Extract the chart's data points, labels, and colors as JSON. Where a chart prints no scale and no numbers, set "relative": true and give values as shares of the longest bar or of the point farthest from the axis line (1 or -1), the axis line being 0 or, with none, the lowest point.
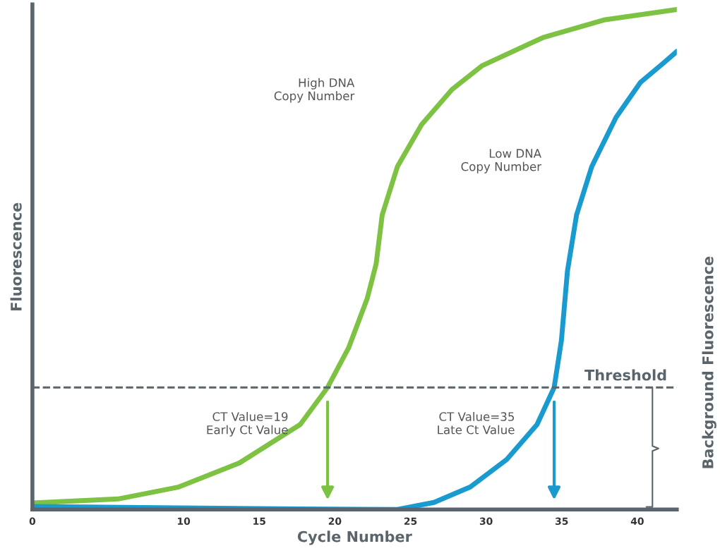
{
  "chart_data": {
    "type": "line",
    "xlabel": "Cycle Number",
    "ylabel": "Fluorescence",
    "relative": true,
    "xlim": [
      0,
      42.61
    ],
    "xticks": [
      0,
      10,
      15,
      20,
      25,
      30,
      35,
      40
    ],
    "series": [
      {
        "color": "#7dc242",
        "x": [
          0,
          5.66,
          9.68,
          13.69,
          17.71,
          19.52,
          20.92,
          22.13,
          22.73,
          23.13,
          24.14,
          25.74,
          27.75,
          29.76,
          33.78,
          37.79,
          42.61
        ],
        "values": [
          0.013,
          0.021,
          0.045,
          0.093,
          0.17,
          0.244,
          0.324,
          0.421,
          0.491,
          0.589,
          0.686,
          0.77,
          0.84,
          0.888,
          0.944,
          0.979,
          1
        ]
      },
      {
        "color": "#1a9bcf",
        "x": [
          0,
          9.68,
          17.71,
          24.14,
          26.55,
          28.96,
          31.37,
          33.37,
          34.5,
          34.98,
          35.38,
          35.98,
          36.99,
          38.59,
          40.2,
          41.81,
          42.61
        ],
        "values": [
          0.006,
          0.003,
          0.001,
          0,
          0.014,
          0.045,
          0.1,
          0.17,
          0.244,
          0.338,
          0.477,
          0.589,
          0.686,
          0.784,
          0.854,
          0.895,
          0.916
        ]
      }
    ],
    "ref_lines": [
      {
        "axis": "y",
        "value": 0.244,
        "label": "Threshold",
        "color": "#5a646b",
        "line_style": "dashed"
      }
    ],
    "annotations": [
      "High DNA\nCopy Number",
      "Low DNA\nCopy Number",
      "CT Value=19\nEarly Ct Value",
      "CT Value=35\nLate Ct Value",
      "Background Fluorescence"
    ],
    "grid": false,
    "legend": false,
    "marker": "none",
    "line_style": "solid"
  }
}
